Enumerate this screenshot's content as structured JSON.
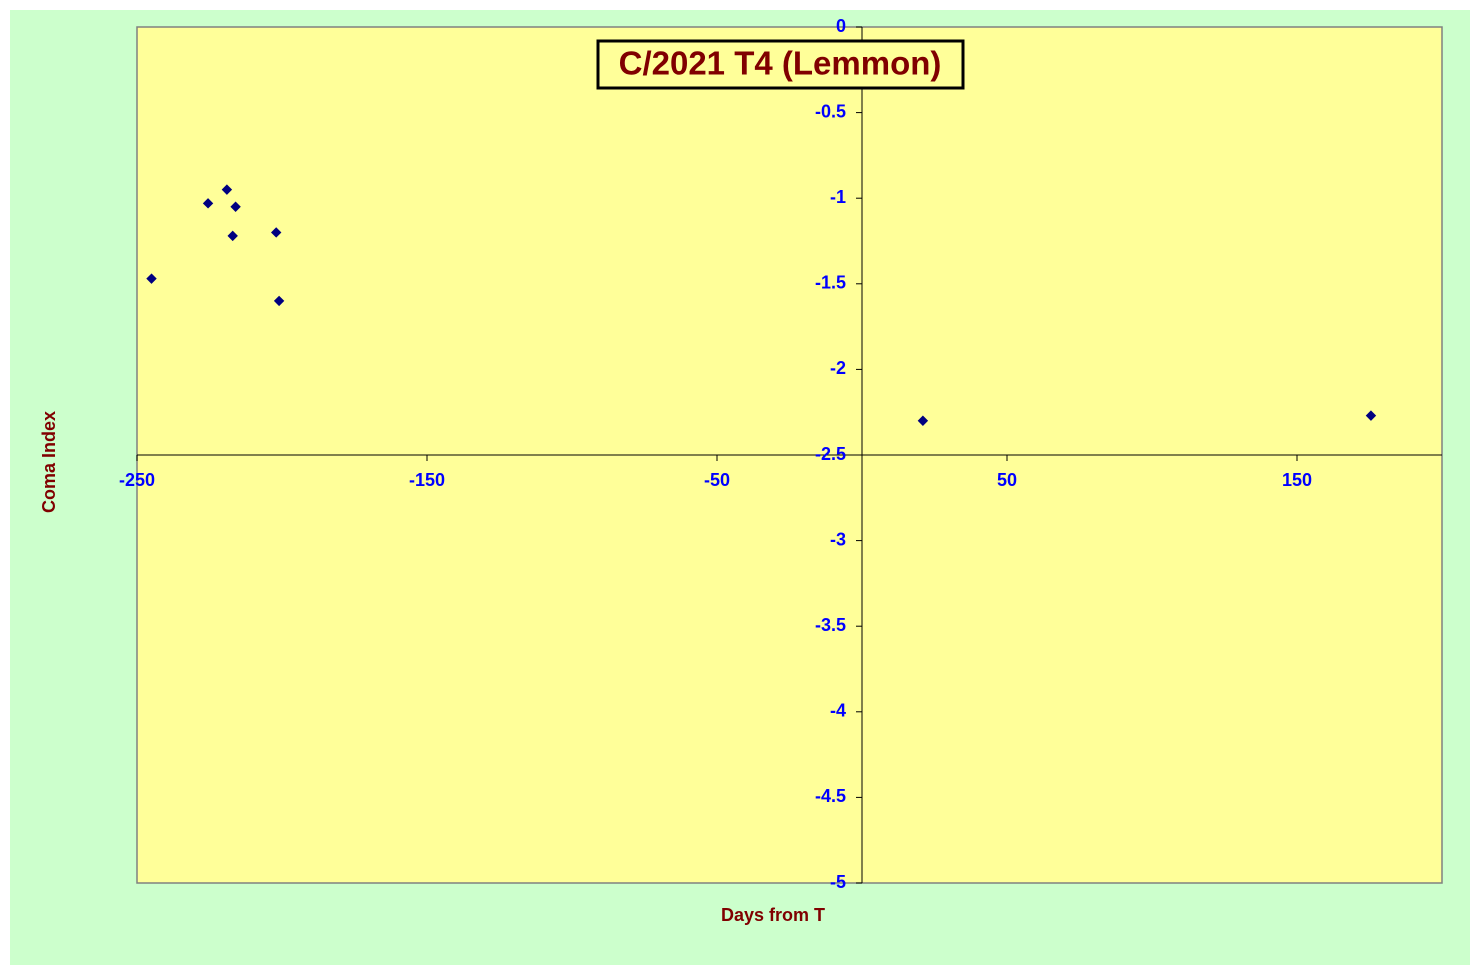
{
  "chart_data": {
    "type": "scatter",
    "title": "C/2021 T4 (Lemmon)",
    "x_label": "Days from T",
    "y_label": "Coma Index",
    "series": [
      {
        "color": "#000080",
        "x": [
          -245,
          -225.5,
          -219,
          -216,
          -217,
          -202,
          -201,
          21,
          175.5
        ],
        "values": [
          -1.47,
          -1.03,
          -0.95,
          -1.05,
          -1.22,
          -1.2,
          -1.6,
          -2.3,
          -2.27
        ]
      }
    ],
    "xlim": [
      -250,
      200
    ],
    "xticks": [
      -250,
      -150,
      -50,
      50,
      150
    ],
    "ylim": [
      -5,
      0
    ],
    "yticks": [
      0,
      -0.5,
      -1,
      -1.5,
      -2,
      -2.5,
      -3,
      -3.5,
      -4,
      -4.5,
      -5
    ],
    "x_axis_at": -2.5,
    "y_axis_at": 0,
    "grid": false
  }
}
